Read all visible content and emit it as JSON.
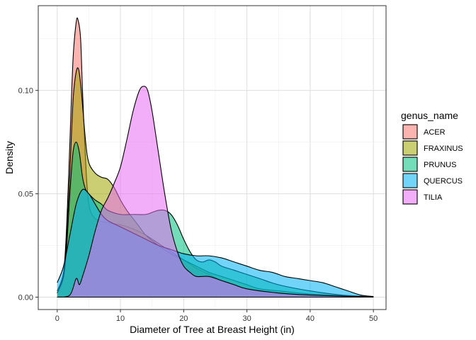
{
  "chart_data": {
    "type": "area",
    "subtype": "density",
    "xlabel": "Diameter of Tree at Breast Height (in)",
    "ylabel": "Density",
    "xlim": [
      -3,
      52
    ],
    "ylim": [
      -0.006,
      0.141
    ],
    "x_ticks": [
      0,
      10,
      20,
      30,
      40,
      50
    ],
    "x_tick_labels": [
      "0",
      "10",
      "20",
      "30",
      "40",
      "50"
    ],
    "y_ticks": [
      0.0,
      0.05,
      0.1
    ],
    "y_tick_labels": [
      "0.00",
      "0.05",
      "0.10"
    ],
    "grid": true,
    "fill_opacity": 0.55,
    "legend": {
      "title": "genus_name",
      "position": "right"
    },
    "series": [
      {
        "name": "ACER",
        "color": "#F8766D",
        "points": [
          [
            0,
            0.003
          ],
          [
            1,
            0.012
          ],
          [
            1.5,
            0.035
          ],
          [
            2,
            0.075
          ],
          [
            2.5,
            0.115
          ],
          [
            3,
            0.133
          ],
          [
            3.3,
            0.134
          ],
          [
            3.7,
            0.125
          ],
          [
            4,
            0.1
          ],
          [
            4.5,
            0.065
          ],
          [
            5,
            0.045
          ],
          [
            6,
            0.038
          ],
          [
            8,
            0.036
          ],
          [
            10,
            0.035
          ],
          [
            12,
            0.033
          ],
          [
            14,
            0.03
          ],
          [
            16,
            0.026
          ],
          [
            18,
            0.022
          ],
          [
            20,
            0.018
          ],
          [
            22,
            0.014
          ],
          [
            24,
            0.011
          ],
          [
            26,
            0.008
          ],
          [
            28,
            0.006
          ],
          [
            30,
            0.004
          ],
          [
            32,
            0.003
          ],
          [
            35,
            0.002
          ],
          [
            40,
            0.001
          ],
          [
            45,
            0.0005
          ],
          [
            50,
            0.0002
          ]
        ]
      },
      {
        "name": "FRAXINUS",
        "color": "#A3A500",
        "points": [
          [
            0,
            0.002
          ],
          [
            1,
            0.01
          ],
          [
            1.5,
            0.03
          ],
          [
            2,
            0.06
          ],
          [
            2.5,
            0.095
          ],
          [
            3,
            0.109
          ],
          [
            3.4,
            0.11
          ],
          [
            3.8,
            0.1
          ],
          [
            4.5,
            0.075
          ],
          [
            5,
            0.065
          ],
          [
            6,
            0.06
          ],
          [
            7,
            0.058
          ],
          [
            8,
            0.057
          ],
          [
            9,
            0.053
          ],
          [
            10,
            0.047
          ],
          [
            11,
            0.042
          ],
          [
            12,
            0.038
          ],
          [
            13,
            0.034
          ],
          [
            14,
            0.03
          ],
          [
            16,
            0.025
          ],
          [
            18,
            0.021
          ],
          [
            20,
            0.018
          ],
          [
            22,
            0.015
          ],
          [
            24,
            0.012
          ],
          [
            26,
            0.01
          ],
          [
            28,
            0.008
          ],
          [
            30,
            0.006
          ],
          [
            32,
            0.004
          ],
          [
            35,
            0.003
          ],
          [
            40,
            0.0015
          ],
          [
            45,
            0.0008
          ],
          [
            50,
            0.0002
          ]
        ]
      },
      {
        "name": "PRUNUS",
        "color": "#00BF7D",
        "points": [
          [
            0,
            0.002
          ],
          [
            1,
            0.01
          ],
          [
            1.5,
            0.025
          ],
          [
            2,
            0.05
          ],
          [
            2.5,
            0.07
          ],
          [
            3,
            0.075
          ],
          [
            3.5,
            0.07
          ],
          [
            4,
            0.058
          ],
          [
            4.5,
            0.052
          ],
          [
            5,
            0.05
          ],
          [
            6,
            0.047
          ],
          [
            7,
            0.045
          ],
          [
            8,
            0.042
          ],
          [
            10,
            0.04
          ],
          [
            12,
            0.04
          ],
          [
            14,
            0.04
          ],
          [
            15,
            0.041
          ],
          [
            16,
            0.042
          ],
          [
            17,
            0.042
          ],
          [
            18,
            0.04
          ],
          [
            19,
            0.035
          ],
          [
            20,
            0.028
          ],
          [
            21,
            0.022
          ],
          [
            22,
            0.018
          ],
          [
            23,
            0.017
          ],
          [
            24,
            0.018
          ],
          [
            25,
            0.017
          ],
          [
            26,
            0.015
          ],
          [
            28,
            0.013
          ],
          [
            30,
            0.011
          ],
          [
            32,
            0.009
          ],
          [
            35,
            0.006
          ],
          [
            40,
            0.003
          ],
          [
            45,
            0.001
          ],
          [
            50,
            0.0002
          ]
        ]
      },
      {
        "name": "QUERCUS",
        "color": "#00B0F6",
        "points": [
          [
            0,
            0.007
          ],
          [
            1,
            0.015
          ],
          [
            2,
            0.03
          ],
          [
            3,
            0.045
          ],
          [
            4,
            0.052
          ],
          [
            5,
            0.05
          ],
          [
            6,
            0.045
          ],
          [
            7,
            0.04
          ],
          [
            8,
            0.037
          ],
          [
            10,
            0.034
          ],
          [
            12,
            0.031
          ],
          [
            14,
            0.028
          ],
          [
            16,
            0.025
          ],
          [
            18,
            0.023
          ],
          [
            20,
            0.021
          ],
          [
            22,
            0.02
          ],
          [
            24,
            0.02
          ],
          [
            26,
            0.019
          ],
          [
            28,
            0.017
          ],
          [
            30,
            0.015
          ],
          [
            32,
            0.013
          ],
          [
            34,
            0.012
          ],
          [
            36,
            0.01
          ],
          [
            38,
            0.009
          ],
          [
            40,
            0.008
          ],
          [
            42,
            0.007
          ],
          [
            44,
            0.005
          ],
          [
            46,
            0.003
          ],
          [
            48,
            0.001
          ],
          [
            50,
            0.0003
          ]
        ]
      },
      {
        "name": "TILIA",
        "color": "#E76BF3",
        "points": [
          [
            0,
            0.0
          ],
          [
            2,
            0.001
          ],
          [
            3,
            0.009
          ],
          [
            3.5,
            0.006
          ],
          [
            4,
            0.01
          ],
          [
            5,
            0.02
          ],
          [
            6,
            0.032
          ],
          [
            7,
            0.042
          ],
          [
            8,
            0.048
          ],
          [
            9,
            0.055
          ],
          [
            10,
            0.063
          ],
          [
            11,
            0.076
          ],
          [
            12,
            0.09
          ],
          [
            13,
            0.1
          ],
          [
            13.7,
            0.102
          ],
          [
            14.3,
            0.1
          ],
          [
            15,
            0.09
          ],
          [
            16,
            0.07
          ],
          [
            17,
            0.05
          ],
          [
            18,
            0.033
          ],
          [
            19,
            0.022
          ],
          [
            20,
            0.015
          ],
          [
            21,
            0.012
          ],
          [
            22,
            0.01
          ],
          [
            24,
            0.01
          ],
          [
            26,
            0.008
          ],
          [
            28,
            0.006
          ],
          [
            30,
            0.004
          ],
          [
            35,
            0.002
          ],
          [
            40,
            0.001
          ],
          [
            45,
            0.0005
          ],
          [
            50,
            0.0001
          ]
        ]
      }
    ]
  }
}
